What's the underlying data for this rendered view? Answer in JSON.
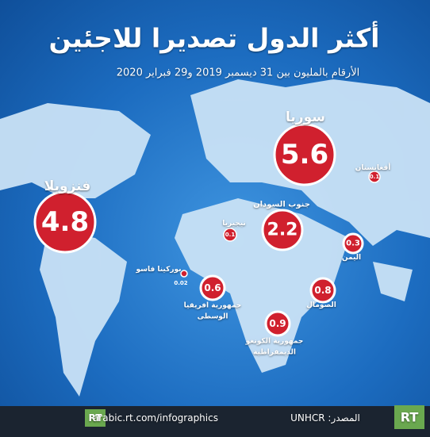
{
  "title": "أكثر الدول تصديرا للاجئين",
  "subtitle": "الأرقام بالمليون بين 31 ديسمبر 2019 و29 فبراير 2020",
  "countries": [
    {
      "name": "سوريا",
      "value": 5.6
    },
    {
      "name": "فنزويلا",
      "value": 4.8
    },
    {
      "name": "جنوب السودان",
      "value": 2.2
    },
    {
      "name": "أفغانستان",
      "value": 0.1
    },
    {
      "name": "نيجيريا",
      "value": 0.1
    },
    {
      "name": "اليمن",
      "value": 0.3
    },
    {
      "name": "الصومال",
      "value": 0.8
    },
    {
      "name": "جمهورية افريقيا الوسطى",
      "value": 0.6
    },
    {
      "name": "جمهورية الكونغو الديمقراطية",
      "value": 0.9
    },
    {
      "name": "بوركينا فاسو",
      "value": 0.02
    }
  ],
  "footer": {
    "url": "arabic.rt.com/infographics",
    "source": "المصدر: UNHCR",
    "logo": "RT"
  }
}
